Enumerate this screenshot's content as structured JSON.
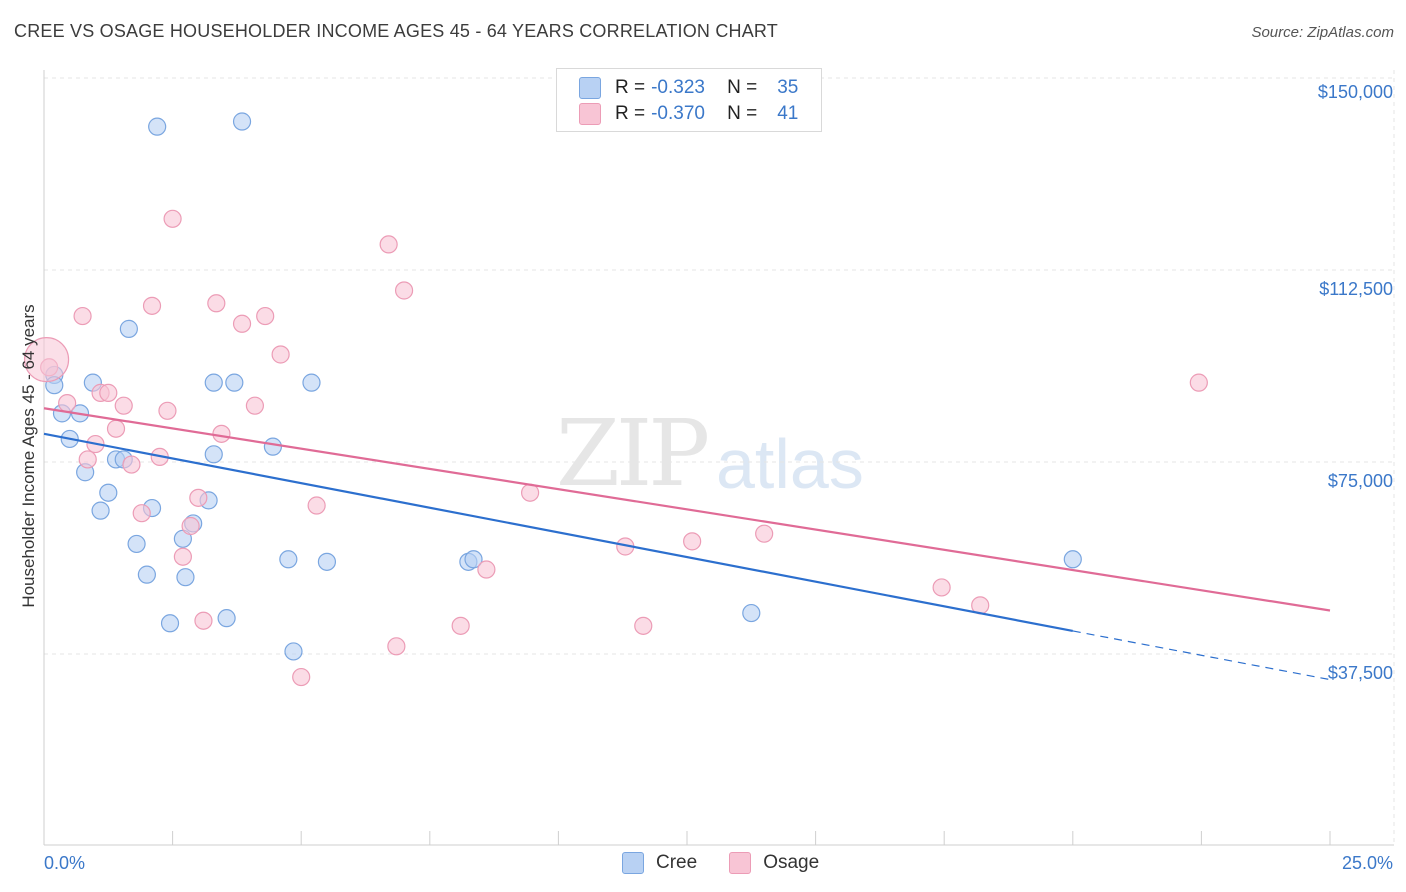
{
  "title": "CREE VS OSAGE HOUSEHOLDER INCOME AGES 45 - 64 YEARS CORRELATION CHART",
  "source": "Source: ZipAtlas.com",
  "watermark": {
    "zip": "ZIP",
    "atlas": "atlas"
  },
  "legend": {
    "rows": [
      {
        "r_label": "R =",
        "r_value": "-0.323",
        "n_label": "N =",
        "n_value": "35"
      },
      {
        "r_label": "R =",
        "r_value": "-0.370",
        "n_label": "N =",
        "n_value": "41"
      }
    ]
  },
  "bottom_legend": {
    "cree": "Cree",
    "osage": "Osage"
  },
  "colors": {
    "cree_fill": "#b8d1f3",
    "cree_stroke": "#7aa6e0",
    "cree_line": "#2c6fce",
    "osage_fill": "#f8c5d5",
    "osage_stroke": "#ec9cb6",
    "osage_line": "#e06b96",
    "tick_text": "#3b78c9",
    "grid": "#e5e5e5"
  },
  "chart_data": {
    "type": "scatter",
    "title": "CREE VS OSAGE HOUSEHOLDER INCOME AGES 45 - 64 YEARS CORRELATION CHART",
    "xlabel": "",
    "ylabel": "Householder Income Ages 45 - 64 years",
    "xlim": [
      0,
      25
    ],
    "ylim": [
      15000,
      155000
    ],
    "x_tick_labels": [
      "0.0%",
      "25.0%"
    ],
    "y_ticks": [
      37500,
      75000,
      112500,
      150000
    ],
    "y_tick_labels": [
      "$37,500",
      "$75,000",
      "$112,500",
      "$150,000"
    ],
    "grid": true,
    "legend_position": "top-center",
    "series": [
      {
        "name": "Cree",
        "r": -0.323,
        "n": 35,
        "points": [
          [
            0.2,
            92000
          ],
          [
            0.2,
            90000
          ],
          [
            0.35,
            84500
          ],
          [
            0.5,
            79500
          ],
          [
            0.7,
            84500
          ],
          [
            0.8,
            73000
          ],
          [
            0.95,
            90500
          ],
          [
            1.1,
            65500
          ],
          [
            1.25,
            69000
          ],
          [
            1.4,
            75500
          ],
          [
            1.55,
            75500
          ],
          [
            1.65,
            101000
          ],
          [
            1.8,
            59000
          ],
          [
            2.0,
            53000
          ],
          [
            2.1,
            66000
          ],
          [
            2.2,
            140500
          ],
          [
            2.45,
            43500
          ],
          [
            2.7,
            60000
          ],
          [
            2.75,
            52500
          ],
          [
            2.9,
            63000
          ],
          [
            3.2,
            67500
          ],
          [
            3.3,
            76500
          ],
          [
            3.3,
            90500
          ],
          [
            3.55,
            44500
          ],
          [
            3.7,
            90500
          ],
          [
            3.85,
            141500
          ],
          [
            4.45,
            78000
          ],
          [
            4.75,
            56000
          ],
          [
            4.85,
            38000
          ],
          [
            5.2,
            90500
          ],
          [
            5.5,
            55500
          ],
          [
            8.25,
            55500
          ],
          [
            8.35,
            56000
          ],
          [
            13.75,
            45500
          ],
          [
            20.0,
            56000
          ]
        ],
        "trend": {
          "x": [
            0,
            20
          ],
          "y": [
            80500,
            42000
          ],
          "dashed_to": [
            25,
            32500
          ]
        }
      },
      {
        "name": "Osage",
        "r": -0.37,
        "n": 41,
        "points": [
          [
            0.1,
            93500
          ],
          [
            0.45,
            86500
          ],
          [
            0.75,
            103500
          ],
          [
            0.85,
            75500
          ],
          [
            1.0,
            78500
          ],
          [
            1.1,
            88500
          ],
          [
            1.25,
            88500
          ],
          [
            1.4,
            81500
          ],
          [
            1.55,
            86000
          ],
          [
            1.7,
            74500
          ],
          [
            1.9,
            65000
          ],
          [
            2.1,
            105500
          ],
          [
            2.25,
            76000
          ],
          [
            2.4,
            85000
          ],
          [
            2.5,
            122500
          ],
          [
            2.7,
            56500
          ],
          [
            2.85,
            62500
          ],
          [
            3.0,
            68000
          ],
          [
            3.1,
            44000
          ],
          [
            3.35,
            106000
          ],
          [
            3.45,
            80500
          ],
          [
            3.85,
            102000
          ],
          [
            4.1,
            86000
          ],
          [
            4.3,
            103500
          ],
          [
            4.6,
            96000
          ],
          [
            5.0,
            33000
          ],
          [
            5.3,
            66500
          ],
          [
            6.7,
            117500
          ],
          [
            6.85,
            39000
          ],
          [
            7.0,
            108500
          ],
          [
            8.1,
            43000
          ],
          [
            8.6,
            54000
          ],
          [
            9.45,
            69000
          ],
          [
            11.3,
            58500
          ],
          [
            11.65,
            43000
          ],
          [
            12.6,
            59500
          ],
          [
            14.0,
            61000
          ],
          [
            17.45,
            50500
          ],
          [
            18.2,
            47000
          ],
          [
            22.45,
            90500
          ],
          [
            0.05,
            95000
          ]
        ],
        "trend": {
          "x": [
            0,
            25
          ],
          "y": [
            85500,
            46000
          ]
        }
      }
    ]
  }
}
